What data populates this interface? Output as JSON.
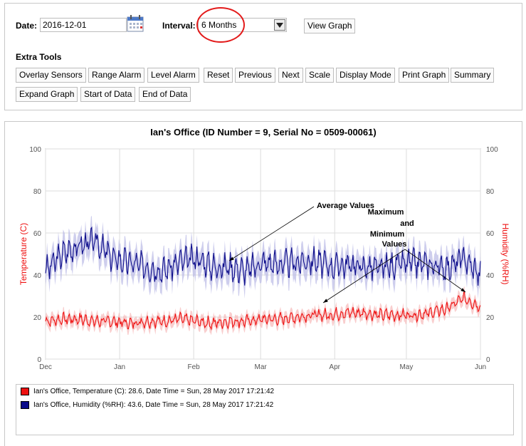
{
  "controls": {
    "date_label": "Date:",
    "date_value": "2016-12-01",
    "interval_label": "Interval:",
    "interval_value": "6 Months",
    "view_graph": "View Graph",
    "extra_tools_label": "Extra Tools",
    "tools_row1": [
      "Overlay Sensors",
      "Range Alarm",
      "Level Alarm",
      "Reset",
      "Previous",
      "Next",
      "Scale",
      "Display Mode",
      "Print Graph",
      "Summary"
    ],
    "tools_row2": [
      "Expand Graph",
      "Start of Data",
      "End of Data"
    ]
  },
  "chart_data": {
    "type": "line",
    "title": "Ian's Office (ID Number = 9, Serial No = 0509-00061)",
    "ylabel": "Temperature (C)",
    "y2label": "Humidity (%RH)",
    "ylim": [
      0,
      100
    ],
    "y2lim": [
      0,
      100
    ],
    "yticks": [
      "0",
      "20",
      "40",
      "60",
      "80",
      "100"
    ],
    "x_range": [
      "2016-12-01",
      "2017-06-01"
    ],
    "x_ticks": [
      {
        "label": "Dec",
        "date": "2016-12-01"
      },
      {
        "label": "Jan",
        "date": "2017-01-01"
      },
      {
        "label": "Feb",
        "date": "2017-02-01"
      },
      {
        "label": "Mar",
        "date": "2017-03-01"
      },
      {
        "label": "Apr",
        "date": "2017-04-01"
      },
      {
        "label": "May",
        "date": "2017-05-01"
      },
      {
        "label": "Jun",
        "date": "2017-06-01"
      }
    ],
    "grid": true,
    "series": [
      {
        "name": "Humidity",
        "color": "#0c0c8a",
        "band_color": "#b9b9e6",
        "axis": "right",
        "x": [
          "2016-12-01",
          "2016-12-08",
          "2016-12-15",
          "2016-12-22",
          "2016-12-29",
          "2017-01-05",
          "2017-01-12",
          "2017-01-19",
          "2017-01-26",
          "2017-02-02",
          "2017-02-09",
          "2017-02-16",
          "2017-02-23",
          "2017-03-02",
          "2017-03-09",
          "2017-03-16",
          "2017-03-23",
          "2017-03-30",
          "2017-04-06",
          "2017-04-13",
          "2017-04-20",
          "2017-04-27",
          "2017-05-04",
          "2017-05-11",
          "2017-05-18",
          "2017-05-25",
          "2017-06-01"
        ],
        "values": [
          42,
          50,
          54,
          56,
          48,
          46,
          44,
          42,
          46,
          48,
          44,
          44,
          42,
          46,
          45,
          46,
          47,
          44,
          45,
          44,
          43,
          45,
          46,
          45,
          43,
          48,
          40
        ]
      },
      {
        "name": "Temperature",
        "color": "#ee1111",
        "band_color": "#f6b9b9",
        "axis": "left",
        "x": [
          "2016-12-01",
          "2016-12-08",
          "2016-12-15",
          "2016-12-22",
          "2016-12-29",
          "2017-01-05",
          "2017-01-12",
          "2017-01-19",
          "2017-01-26",
          "2017-02-02",
          "2017-02-09",
          "2017-02-16",
          "2017-02-23",
          "2017-03-02",
          "2017-03-09",
          "2017-03-16",
          "2017-03-23",
          "2017-03-30",
          "2017-04-06",
          "2017-04-13",
          "2017-04-20",
          "2017-04-27",
          "2017-05-04",
          "2017-05-11",
          "2017-05-18",
          "2017-05-25",
          "2017-06-01"
        ],
        "values": [
          18,
          19,
          19,
          18,
          18,
          17,
          18,
          18,
          19,
          18,
          17,
          18,
          18,
          19,
          19,
          20,
          21,
          21,
          22,
          22,
          21,
          21,
          21,
          22,
          24,
          29,
          25
        ]
      }
    ],
    "annotations": [
      {
        "text": "Average Values"
      },
      {
        "text": "Maximum"
      },
      {
        "text": "and"
      },
      {
        "text": "Minimum"
      },
      {
        "text": "Values"
      }
    ]
  },
  "legend": [
    {
      "text": "Ian's Office, Temperature (C): 28.6, Date Time = Sun, 28 May 2017 17:21:42",
      "color": "#ee1111"
    },
    {
      "text": "Ian's Office, Humidity (%RH): 43.6, Date Time = Sun, 28 May 2017 17:21:42",
      "color": "#0c0c8a"
    }
  ]
}
